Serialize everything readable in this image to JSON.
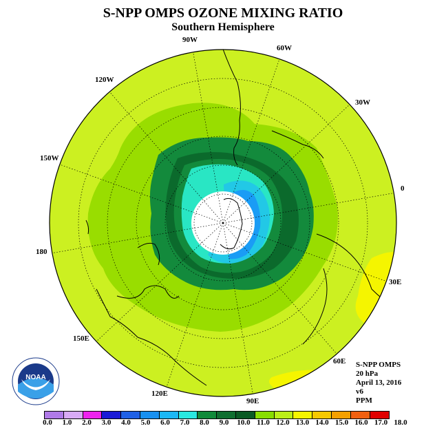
{
  "title": "S-NPP OMPS OZONE MIXING RATIO",
  "subtitle": "Southern Hemisphere",
  "longitude_labels": [
    "90W",
    "60W",
    "30W",
    "0",
    "30E",
    "60E",
    "90E",
    "120E",
    "150E",
    "180",
    "150W",
    "120W"
  ],
  "info": {
    "instrument": "S-NPP OMPS",
    "level": "20 hPa",
    "date": "April 13, 2016",
    "version": "v6",
    "units": "PPM"
  },
  "logo_text": "NOAA",
  "colorbar": {
    "labels": [
      "0.0",
      "1.0",
      "2.0",
      "3.0",
      "4.0",
      "5.0",
      "6.0",
      "7.0",
      "8.0",
      "9.0",
      "10.0",
      "11.0",
      "12.0",
      "13.0",
      "14.0",
      "15.0",
      "16.0",
      "17.0",
      "18.0"
    ],
    "colors": [
      "#b07ae8",
      "#d8aaf5",
      "#ee22ee",
      "#1a1ad6",
      "#1f60e6",
      "#1890f0",
      "#1cb8f5",
      "#29e8e0",
      "#108a3a",
      "#0f6e30",
      "#0a5a24",
      "#88dd00",
      "#bbef18",
      "#f5f500",
      "#f5c800",
      "#f5a000",
      "#f06010",
      "#e00000",
      "#7a4a30"
    ]
  },
  "field_colors": {
    "background": "#ccf021",
    "level_11": "#99dd00",
    "level_10": "#138a3c",
    "level_9": "#0b6a2c",
    "level_8": "#29e6c4",
    "level_7": "#22c8e6",
    "level_6": "#1a9cf5",
    "level_13": "#f5f500",
    "missing": "#ffffff"
  }
}
